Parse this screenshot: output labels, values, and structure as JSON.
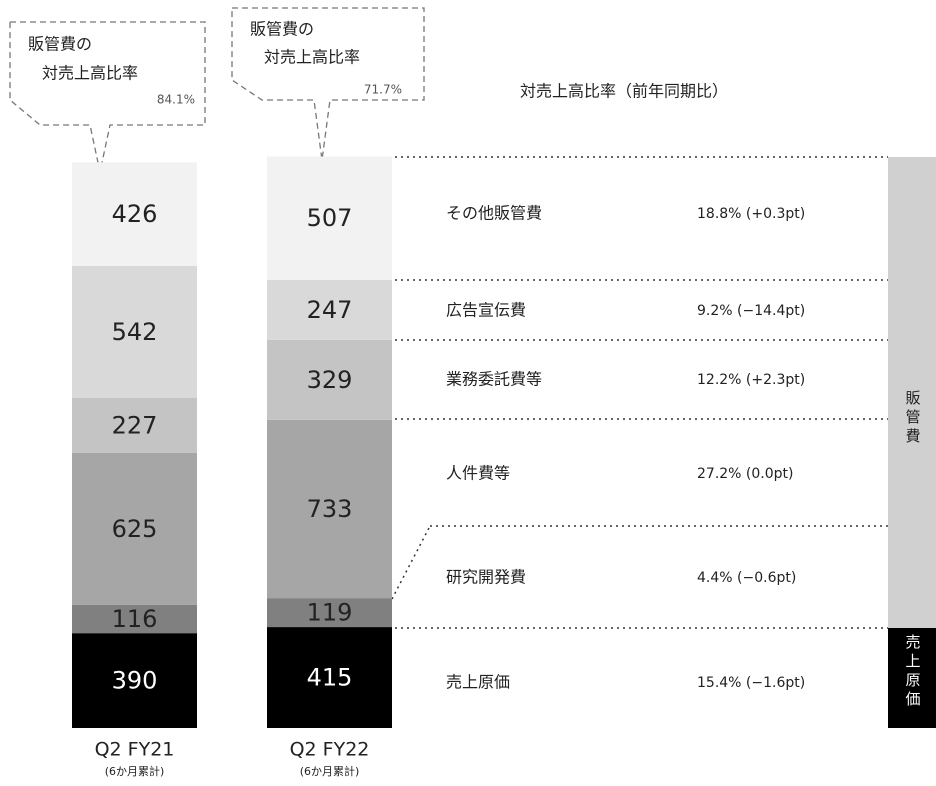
{
  "chart_data": {
    "type": "stacked-bar",
    "categories": [
      "Q2 FY21",
      "Q2 FY22"
    ],
    "category_note": "(6か月累計)",
    "ratio_header": "対売上高比率（前年同期比）",
    "series": [
      {
        "name": "その他販管費",
        "color": "#f2f2f2",
        "values": [
          426,
          507
        ],
        "ratio": "18.8% (+0.3pt)"
      },
      {
        "name": "広告宣伝費",
        "color": "#d9d9d9",
        "values": [
          542,
          247
        ],
        "ratio": "9.2% (−14.4pt)"
      },
      {
        "name": "業務委託費等",
        "color": "#c4c4c4",
        "values": [
          227,
          329
        ],
        "ratio": "12.2% (+2.3pt)"
      },
      {
        "name": "人件費等",
        "color": "#a6a6a6",
        "values": [
          625,
          733
        ],
        "ratio": "27.2% (0.0pt)"
      },
      {
        "name": "研究開発費",
        "color": "#808080",
        "values": [
          116,
          119
        ],
        "ratio": "4.4% (−0.6pt)"
      },
      {
        "name": "売上原価",
        "color": "#000000",
        "values": [
          390,
          415
        ],
        "ratio": "15.4% (−1.6pt)"
      }
    ],
    "callouts": [
      {
        "title": [
          "販管費の",
          "対売上高比率"
        ],
        "ratio": "84.1%"
      },
      {
        "title": [
          "販管費の",
          "対売上高比率"
        ],
        "ratio": "71.7%"
      }
    ],
    "groups": [
      "販管費",
      "売上原価"
    ]
  }
}
